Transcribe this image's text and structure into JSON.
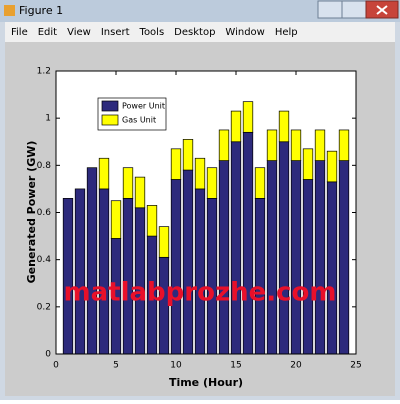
{
  "window": {
    "title": "Figure 1",
    "menu": [
      "File",
      "Edit",
      "View",
      "Insert",
      "Tools",
      "Desktop",
      "Window",
      "Help"
    ]
  },
  "watermark": "matlabprozhe.com",
  "chart_data": {
    "type": "stacked-bar",
    "x_label": "Time (Hour)",
    "y_label": "Generated Power (GW)",
    "x": [
      1,
      2,
      3,
      4,
      5,
      6,
      7,
      8,
      9,
      10,
      11,
      12,
      13,
      14,
      15,
      16,
      17,
      18,
      19,
      20,
      21,
      22,
      23,
      24
    ],
    "series": [
      {
        "name": "Power Unit",
        "color": "#2d2a7c",
        "values": [
          0.66,
          0.7,
          0.79,
          0.7,
          0.49,
          0.66,
          0.62,
          0.5,
          0.41,
          0.74,
          0.78,
          0.7,
          0.66,
          0.82,
          0.9,
          0.94,
          0.66,
          0.82,
          0.9,
          0.82,
          0.74,
          0.82,
          0.73,
          0.82
        ]
      },
      {
        "name": "Gas Unit",
        "color": "#ffff00",
        "values": [
          0,
          0,
          0,
          0.13,
          0.16,
          0.13,
          0.13,
          0.13,
          0.13,
          0.13,
          0.13,
          0.13,
          0.13,
          0.13,
          0.13,
          0.13,
          0.13,
          0.13,
          0.13,
          0.13,
          0.13,
          0.13,
          0.13,
          0.13
        ]
      }
    ],
    "xlim": [
      0,
      25
    ],
    "xticks": [
      0,
      5,
      10,
      15,
      20,
      25
    ],
    "ylim": [
      0,
      1.2
    ],
    "yticks": [
      0,
      0.2,
      0.4,
      0.6,
      0.8,
      1,
      1.2
    ],
    "legend": "upper left"
  }
}
